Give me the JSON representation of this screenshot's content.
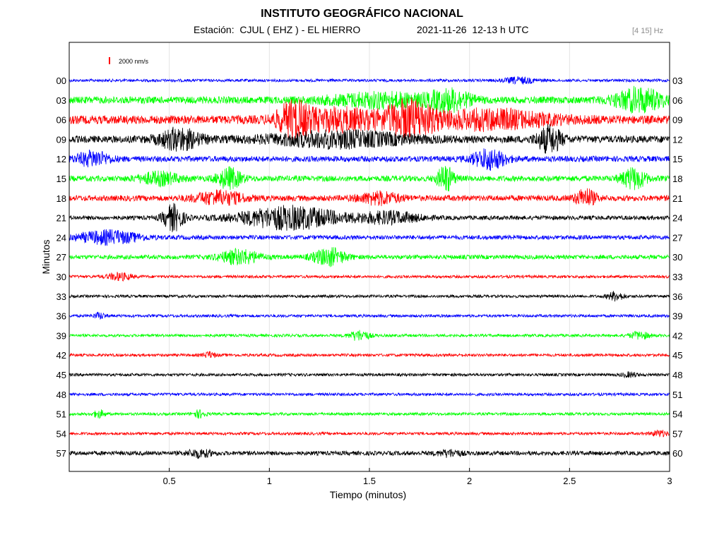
{
  "header": {
    "title": "INSTITUTO GEOGRÁFICO NACIONAL",
    "station": "Estación:  CJUL ( EHZ ) - EL HIERRO",
    "datetime": "2021-11-26  12-13 h UTC",
    "filter": "[4 15] Hz"
  },
  "chart_data": {
    "type": "line",
    "chart_kind": "seismogram-helicorder",
    "xlabel": "Tiempo (minutos)",
    "ylabel": "Minutos",
    "xlim": [
      0,
      3
    ],
    "xticks": [
      "0.5",
      "1",
      "1.5",
      "2",
      "2.5",
      "3"
    ],
    "xtick_values": [
      0.5,
      1,
      1.5,
      2,
      2.5,
      3
    ],
    "grid": true,
    "scale_bar_label": "2000 nm/s",
    "scale_bar_color": "#ff0000",
    "colors": [
      "#0000ff",
      "#00ff00",
      "#ff0000",
      "#000000"
    ],
    "traces": [
      {
        "left": "00",
        "right": "03",
        "color": "#0000ff",
        "base_amp": 2,
        "bursts": [
          [
            2.25,
            0.08,
            4
          ]
        ]
      },
      {
        "left": "03",
        "right": "06",
        "color": "#00ff00",
        "base_amp": 5,
        "bursts": [
          [
            1.55,
            0.25,
            9
          ],
          [
            1.9,
            0.1,
            14
          ],
          [
            2.85,
            0.12,
            16
          ]
        ]
      },
      {
        "left": "06",
        "right": "09",
        "color": "#ff0000",
        "base_amp": 6,
        "bursts": [
          [
            1.12,
            0.08,
            22
          ],
          [
            1.35,
            0.2,
            14
          ],
          [
            1.7,
            0.12,
            24
          ],
          [
            2.1,
            0.3,
            12
          ]
        ]
      },
      {
        "left": "09",
        "right": "12",
        "color": "#000000",
        "base_amp": 5,
        "bursts": [
          [
            0.55,
            0.1,
            14
          ],
          [
            1.35,
            0.35,
            10
          ],
          [
            2.4,
            0.06,
            18
          ]
        ]
      },
      {
        "left": "12",
        "right": "15",
        "color": "#0000ff",
        "base_amp": 4,
        "bursts": [
          [
            0.12,
            0.08,
            10
          ],
          [
            2.1,
            0.08,
            14
          ]
        ]
      },
      {
        "left": "15",
        "right": "18",
        "color": "#00ff00",
        "base_amp": 4,
        "bursts": [
          [
            0.45,
            0.1,
            8
          ],
          [
            0.8,
            0.06,
            14
          ],
          [
            1.88,
            0.04,
            18
          ],
          [
            2.82,
            0.06,
            14
          ]
        ]
      },
      {
        "left": "18",
        "right": "21",
        "color": "#ff0000",
        "base_amp": 4,
        "bursts": [
          [
            0.75,
            0.12,
            9
          ],
          [
            1.55,
            0.1,
            8
          ],
          [
            2.58,
            0.05,
            12
          ]
        ]
      },
      {
        "left": "21",
        "right": "24",
        "color": "#000000",
        "base_amp": 3,
        "bursts": [
          [
            0.52,
            0.05,
            18
          ],
          [
            1.1,
            0.25,
            16
          ],
          [
            1.6,
            0.15,
            8
          ]
        ]
      },
      {
        "left": "24",
        "right": "27",
        "color": "#0000ff",
        "base_amp": 3,
        "bursts": [
          [
            0.2,
            0.15,
            9
          ]
        ]
      },
      {
        "left": "27",
        "right": "30",
        "color": "#00ff00",
        "base_amp": 3,
        "bursts": [
          [
            0.85,
            0.1,
            10
          ],
          [
            1.3,
            0.08,
            12
          ]
        ]
      },
      {
        "left": "30",
        "right": "33",
        "color": "#ff0000",
        "base_amp": 2,
        "bursts": [
          [
            0.25,
            0.06,
            5
          ]
        ]
      },
      {
        "left": "33",
        "right": "36",
        "color": "#000000",
        "base_amp": 2,
        "bursts": [
          [
            2.73,
            0.04,
            6
          ]
        ]
      },
      {
        "left": "36",
        "right": "39",
        "color": "#0000ff",
        "base_amp": 2,
        "bursts": [
          [
            0.15,
            0.03,
            4
          ]
        ]
      },
      {
        "left": "39",
        "right": "42",
        "color": "#00ff00",
        "base_amp": 2,
        "bursts": [
          [
            1.45,
            0.05,
            7
          ],
          [
            2.85,
            0.05,
            5
          ]
        ]
      },
      {
        "left": "42",
        "right": "45",
        "color": "#ff0000",
        "base_amp": 2,
        "bursts": [
          [
            0.7,
            0.03,
            4
          ]
        ]
      },
      {
        "left": "45",
        "right": "48",
        "color": "#000000",
        "base_amp": 2,
        "bursts": [
          [
            2.8,
            0.04,
            3
          ]
        ]
      },
      {
        "left": "48",
        "right": "51",
        "color": "#0000ff",
        "base_amp": 2,
        "bursts": []
      },
      {
        "left": "51",
        "right": "54",
        "color": "#00ff00",
        "base_amp": 2,
        "bursts": [
          [
            0.15,
            0.03,
            5
          ],
          [
            0.65,
            0.03,
            5
          ]
        ]
      },
      {
        "left": "54",
        "right": "57",
        "color": "#ff0000",
        "base_amp": 2,
        "bursts": [
          [
            2.95,
            0.04,
            4
          ]
        ]
      },
      {
        "left": "57",
        "right": "60",
        "color": "#000000",
        "base_amp": 3,
        "bursts": [
          [
            0.65,
            0.06,
            5
          ],
          [
            1.9,
            0.06,
            4
          ]
        ]
      }
    ]
  }
}
